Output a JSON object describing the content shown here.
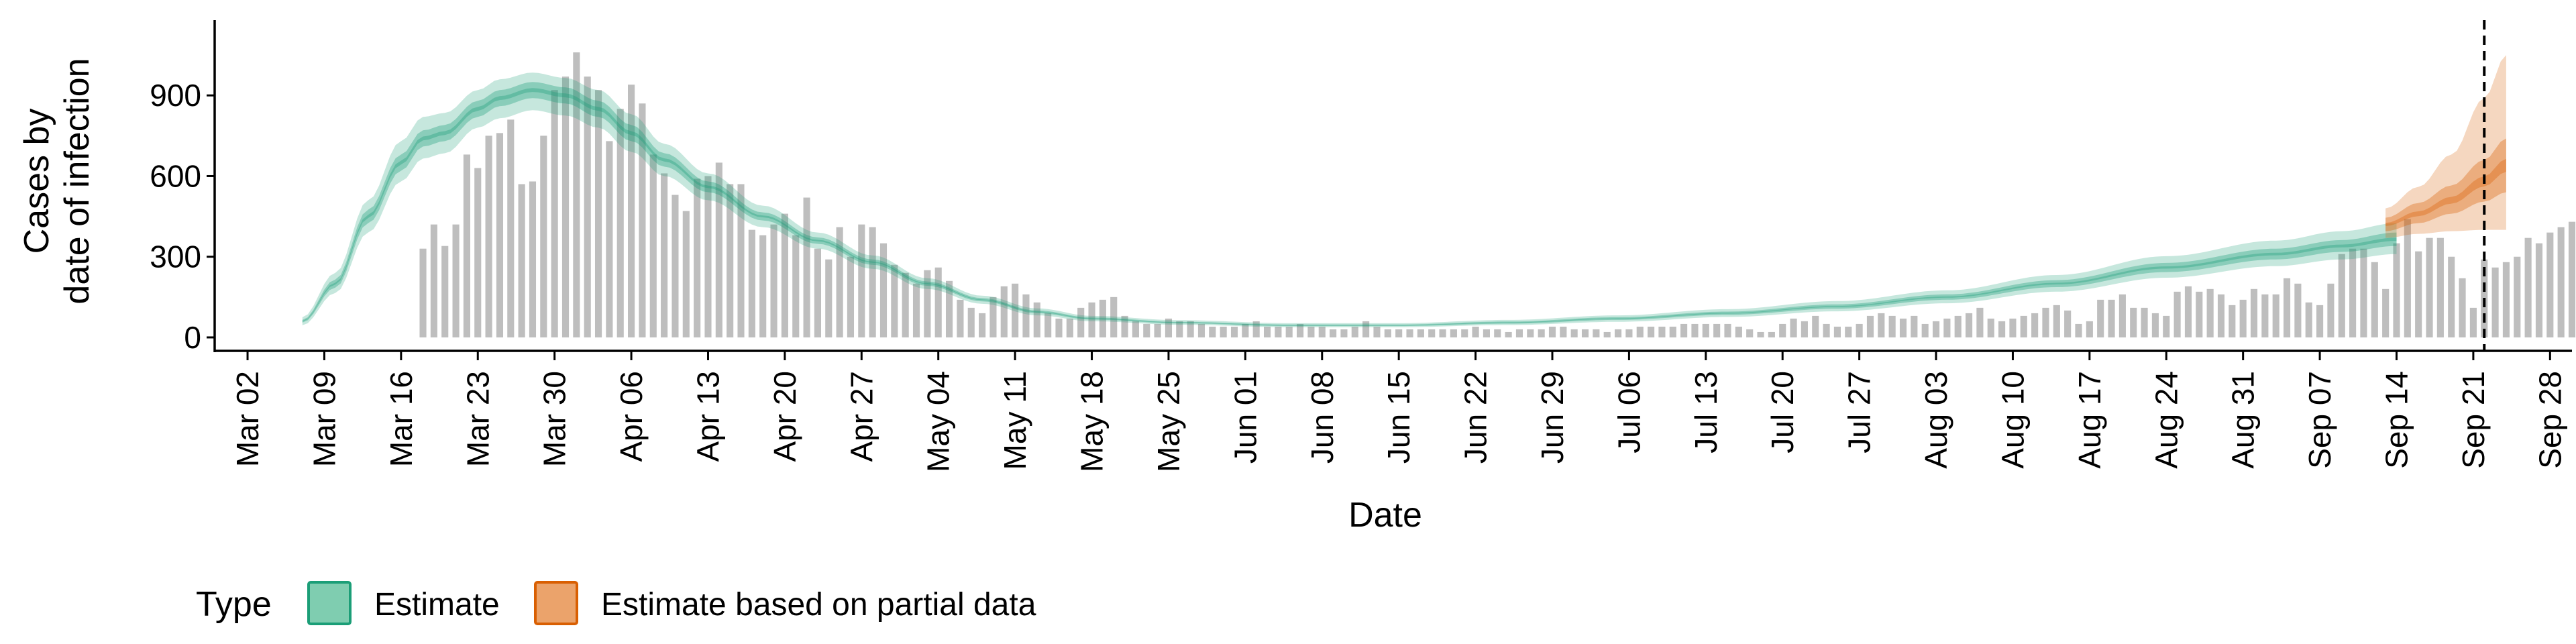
{
  "chart_data": {
    "type": "bar+area",
    "xlabel": "Date",
    "ylabel_lines": [
      "Cases by",
      "date of infection"
    ],
    "x_range": [
      "2020-02-28",
      "2020-09-30"
    ],
    "ylim": [
      -50,
      1180
    ],
    "y_ticks": [
      0,
      300,
      600,
      900
    ],
    "x_ticks": [
      {
        "date": "2020-03-02",
        "label": "Mar 02"
      },
      {
        "date": "2020-03-09",
        "label": "Mar 09"
      },
      {
        "date": "2020-03-16",
        "label": "Mar 16"
      },
      {
        "date": "2020-03-23",
        "label": "Mar 23"
      },
      {
        "date": "2020-03-30",
        "label": "Mar 30"
      },
      {
        "date": "2020-04-06",
        "label": "Apr 06"
      },
      {
        "date": "2020-04-13",
        "label": "Apr 13"
      },
      {
        "date": "2020-04-20",
        "label": "Apr 20"
      },
      {
        "date": "2020-04-27",
        "label": "Apr 27"
      },
      {
        "date": "2020-05-04",
        "label": "May 04"
      },
      {
        "date": "2020-05-11",
        "label": "May 11"
      },
      {
        "date": "2020-05-18",
        "label": "May 18"
      },
      {
        "date": "2020-05-25",
        "label": "May 25"
      },
      {
        "date": "2020-06-01",
        "label": "Jun 01"
      },
      {
        "date": "2020-06-08",
        "label": "Jun 08"
      },
      {
        "date": "2020-06-15",
        "label": "Jun 15"
      },
      {
        "date": "2020-06-22",
        "label": "Jun 22"
      },
      {
        "date": "2020-06-29",
        "label": "Jun 29"
      },
      {
        "date": "2020-07-06",
        "label": "Jul 06"
      },
      {
        "date": "2020-07-13",
        "label": "Jul 13"
      },
      {
        "date": "2020-07-20",
        "label": "Jul 20"
      },
      {
        "date": "2020-07-27",
        "label": "Jul 27"
      },
      {
        "date": "2020-08-03",
        "label": "Aug 03"
      },
      {
        "date": "2020-08-10",
        "label": "Aug 10"
      },
      {
        "date": "2020-08-17",
        "label": "Aug 17"
      },
      {
        "date": "2020-08-24",
        "label": "Aug 24"
      },
      {
        "date": "2020-08-31",
        "label": "Aug 31"
      },
      {
        "date": "2020-09-07",
        "label": "Sep 07"
      },
      {
        "date": "2020-09-14",
        "label": "Sep 14"
      },
      {
        "date": "2020-09-21",
        "label": "Sep 21"
      },
      {
        "date": "2020-09-28",
        "label": "Sep 28"
      }
    ],
    "vline_date": "2020-09-22",
    "colors": {
      "bars": "#bebebe",
      "estimate": "#1b9e77",
      "estimate_partial": "#d95f02",
      "vline": "#000000"
    },
    "legend": {
      "position": "bottom",
      "title": "Type",
      "items": [
        {
          "label": "Estimate",
          "fill": "#7fcdb0",
          "stroke": "#1b9e77"
        },
        {
          "label": "Estimate based on partial data",
          "fill": "#eba36b",
          "stroke": "#d95f02"
        }
      ]
    },
    "bars": {
      "start_date": "2020-03-18",
      "values": [
        330,
        420,
        340,
        420,
        680,
        630,
        750,
        760,
        810,
        570,
        580,
        750,
        920,
        970,
        1060,
        970,
        920,
        730,
        850,
        940,
        870,
        680,
        610,
        530,
        470,
        590,
        600,
        650,
        570,
        570,
        400,
        380,
        420,
        460,
        380,
        520,
        330,
        290,
        410,
        300,
        420,
        410,
        350,
        270,
        240,
        200,
        250,
        260,
        210,
        140,
        110,
        90,
        150,
        190,
        200,
        160,
        130,
        90,
        70,
        70,
        110,
        130,
        140,
        150,
        80,
        60,
        50,
        50,
        70,
        60,
        60,
        50,
        40,
        40,
        40,
        50,
        60,
        40,
        40,
        40,
        50,
        40,
        40,
        30,
        30,
        40,
        60,
        40,
        30,
        30,
        30,
        30,
        30,
        30,
        30,
        30,
        40,
        30,
        30,
        20,
        30,
        30,
        30,
        40,
        40,
        30,
        30,
        30,
        20,
        30,
        30,
        40,
        40,
        40,
        40,
        50,
        50,
        50,
        50,
        50,
        40,
        30,
        20,
        20,
        50,
        70,
        60,
        80,
        50,
        40,
        40,
        50,
        80,
        90,
        80,
        70,
        80,
        50,
        60,
        70,
        80,
        90,
        110,
        70,
        60,
        70,
        80,
        90,
        110,
        120,
        100,
        50,
        60,
        140,
        140,
        160,
        110,
        110,
        90,
        80,
        170,
        190,
        170,
        180,
        160,
        120,
        140,
        180,
        160,
        160,
        220,
        200,
        130,
        120,
        200,
        310,
        330,
        330,
        280,
        180,
        350,
        440,
        320,
        370,
        370,
        300,
        220,
        110,
        290,
        260,
        280,
        300,
        370,
        350,
        390,
        410,
        430,
        530
      ]
    },
    "estimate": {
      "start_date": "2020-03-07",
      "knots": [
        {
          "d": 0,
          "m": 60,
          "l50": 55,
          "u50": 65,
          "l90": 45,
          "u90": 75
        },
        {
          "d": 3,
          "m": 200,
          "l50": 185,
          "u50": 215,
          "l90": 165,
          "u90": 240
        },
        {
          "d": 6,
          "m": 450,
          "l50": 425,
          "u50": 475,
          "l90": 390,
          "u90": 510
        },
        {
          "d": 9,
          "m": 650,
          "l50": 620,
          "u50": 680,
          "l90": 580,
          "u90": 730
        },
        {
          "d": 11,
          "m": 740,
          "l50": 710,
          "u50": 770,
          "l90": 665,
          "u90": 820
        },
        {
          "d": 13,
          "m": 760,
          "l50": 730,
          "u50": 790,
          "l90": 685,
          "u90": 835
        },
        {
          "d": 16,
          "m": 850,
          "l50": 820,
          "u50": 880,
          "l90": 780,
          "u90": 920
        },
        {
          "d": 18,
          "m": 890,
          "l50": 860,
          "u50": 920,
          "l90": 815,
          "u90": 960
        },
        {
          "d": 21,
          "m": 920,
          "l50": 890,
          "u50": 950,
          "l90": 845,
          "u90": 985
        },
        {
          "d": 24,
          "m": 900,
          "l50": 870,
          "u50": 930,
          "l90": 825,
          "u90": 965
        },
        {
          "d": 27,
          "m": 850,
          "l50": 820,
          "u50": 880,
          "l90": 780,
          "u90": 920
        },
        {
          "d": 30,
          "m": 760,
          "l50": 730,
          "u50": 790,
          "l90": 690,
          "u90": 830
        },
        {
          "d": 33,
          "m": 660,
          "l50": 635,
          "u50": 685,
          "l90": 600,
          "u90": 720
        },
        {
          "d": 37,
          "m": 560,
          "l50": 540,
          "u50": 580,
          "l90": 510,
          "u90": 610
        },
        {
          "d": 42,
          "m": 450,
          "l50": 435,
          "u50": 465,
          "l90": 410,
          "u90": 490
        },
        {
          "d": 47,
          "m": 360,
          "l50": 348,
          "u50": 372,
          "l90": 330,
          "u90": 390
        },
        {
          "d": 52,
          "m": 280,
          "l50": 270,
          "u50": 290,
          "l90": 255,
          "u90": 305
        },
        {
          "d": 57,
          "m": 200,
          "l50": 192,
          "u50": 208,
          "l90": 180,
          "u90": 220
        },
        {
          "d": 62,
          "m": 140,
          "l50": 134,
          "u50": 146,
          "l90": 125,
          "u90": 155
        },
        {
          "d": 67,
          "m": 95,
          "l50": 90,
          "u50": 100,
          "l90": 82,
          "u90": 108
        },
        {
          "d": 72,
          "m": 70,
          "l50": 66,
          "u50": 74,
          "l90": 60,
          "u90": 80
        },
        {
          "d": 80,
          "m": 55,
          "l50": 52,
          "u50": 58,
          "l90": 47,
          "u90": 64
        },
        {
          "d": 90,
          "m": 45,
          "l50": 42,
          "u50": 48,
          "l90": 38,
          "u90": 53
        },
        {
          "d": 100,
          "m": 45,
          "l50": 42,
          "u50": 48,
          "l90": 38,
          "u90": 53
        },
        {
          "d": 110,
          "m": 55,
          "l50": 51,
          "u50": 59,
          "l90": 46,
          "u90": 65
        },
        {
          "d": 120,
          "m": 70,
          "l50": 65,
          "u50": 75,
          "l90": 58,
          "u90": 82
        },
        {
          "d": 130,
          "m": 90,
          "l50": 84,
          "u50": 96,
          "l90": 76,
          "u90": 105
        },
        {
          "d": 140,
          "m": 115,
          "l50": 107,
          "u50": 123,
          "l90": 97,
          "u90": 135
        },
        {
          "d": 150,
          "m": 150,
          "l50": 140,
          "u50": 160,
          "l90": 127,
          "u90": 175
        },
        {
          "d": 160,
          "m": 200,
          "l50": 187,
          "u50": 213,
          "l90": 170,
          "u90": 232
        },
        {
          "d": 170,
          "m": 260,
          "l50": 243,
          "u50": 277,
          "l90": 222,
          "u90": 302
        },
        {
          "d": 180,
          "m": 310,
          "l50": 290,
          "u50": 330,
          "l90": 265,
          "u90": 360
        },
        {
          "d": 186,
          "m": 340,
          "l50": 318,
          "u50": 362,
          "l90": 290,
          "u90": 395
        },
        {
          "d": 191,
          "m": 365,
          "l50": 340,
          "u50": 390,
          "l90": 310,
          "u90": 425
        }
      ]
    },
    "estimate_partial": {
      "start_date": "2020-09-13",
      "knots": [
        {
          "d": 0,
          "m": 420,
          "l50": 395,
          "u50": 445,
          "l90": 370,
          "u90": 480
        },
        {
          "d": 3,
          "m": 460,
          "l50": 425,
          "u50": 500,
          "l90": 385,
          "u90": 560
        },
        {
          "d": 6,
          "m": 510,
          "l50": 460,
          "u50": 565,
          "l90": 395,
          "u90": 680
        },
        {
          "d": 9,
          "m": 580,
          "l50": 505,
          "u50": 660,
          "l90": 400,
          "u90": 890
        },
        {
          "d": 11,
          "m": 640,
          "l50": 540,
          "u50": 740,
          "l90": 400,
          "u90": 1050
        }
      ]
    }
  }
}
